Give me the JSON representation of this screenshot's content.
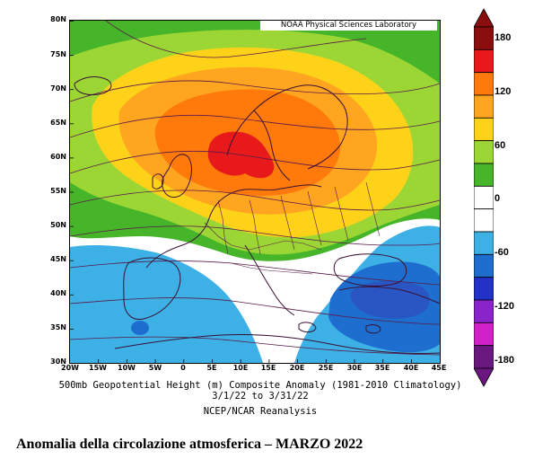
{
  "map": {
    "lat_labels": [
      "80N",
      "75N",
      "70N",
      "65N",
      "60N",
      "55N",
      "50N",
      "45N",
      "40N",
      "35N",
      "30N"
    ],
    "lon_labels": [
      "20W",
      "15W",
      "10W",
      "5W",
      "0",
      "5E",
      "10E",
      "15E",
      "20E",
      "25E",
      "30E",
      "35E",
      "40E",
      "45E"
    ],
    "source": "NOAA Physical Sciences Laboratory",
    "lat_range": [
      30,
      80
    ],
    "lon_range": [
      -20,
      45
    ]
  },
  "captions": {
    "line1": "500mb Geopotential Height (m) Composite Anomaly (1981-2010 Climatology)",
    "line2": "3/1/22  to 3/31/22",
    "line3": "NCEP/NCAR Reanalysis"
  },
  "colorbar": {
    "labels": [
      "180",
      "120",
      "60",
      "0",
      "-60",
      "-120",
      "-180"
    ],
    "colors": [
      "#8a0e0e",
      "#e8191b",
      "#ff7a0a",
      "#ffa51f",
      "#ffd21a",
      "#9bd634",
      "#46b52a",
      "#ffffff",
      "#ffffff",
      "#3db1e6",
      "#1e6ecf",
      "#2232c9",
      "#8a23c9",
      "#d321c9",
      "#6b1780"
    ]
  },
  "footer": {
    "title": "Anomalia della circolazione atmosferica – MARZO 2022"
  }
}
